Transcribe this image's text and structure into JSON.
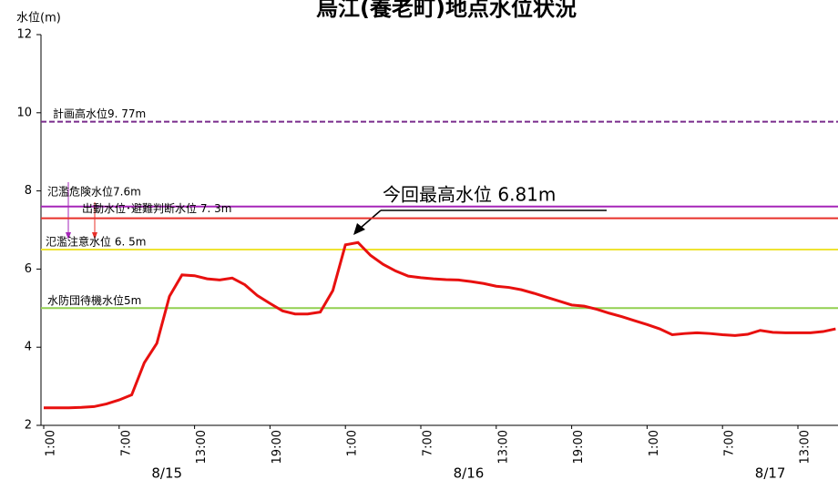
{
  "chart_data": {
    "type": "line",
    "title": "烏江(養老町)地点水位状況",
    "y_label": "水位(m)",
    "categories": [
      "1:00",
      null,
      null,
      null,
      null,
      null,
      "7:00",
      null,
      null,
      null,
      null,
      null,
      "13:00",
      null,
      null,
      null,
      null,
      null,
      "19:00",
      null,
      null,
      null,
      null,
      null,
      "1:00",
      null,
      null,
      null,
      null,
      null,
      "7:00",
      null,
      null,
      null,
      null,
      null,
      "13:00",
      null,
      null,
      null,
      null,
      null,
      "19:00",
      null,
      null,
      null,
      null,
      null,
      "1:00",
      null,
      null,
      null,
      null,
      null,
      "7:00",
      null,
      null,
      null,
      null,
      null,
      "13:00",
      null,
      null,
      null
    ],
    "dates": [
      "8/15",
      "8/16",
      "8/17"
    ],
    "series": [
      {
        "name": "水位",
        "color": "#e8100f",
        "values": [
          2.45,
          2.45,
          2.45,
          2.46,
          2.48,
          2.55,
          2.65,
          2.78,
          3.6,
          4.1,
          5.3,
          5.85,
          5.83,
          5.75,
          5.72,
          5.77,
          5.6,
          5.32,
          5.12,
          4.93,
          4.85,
          4.85,
          4.9,
          5.45,
          6.62,
          6.68,
          6.35,
          6.12,
          5.95,
          5.82,
          5.78,
          5.75,
          5.73,
          5.72,
          5.68,
          5.63,
          5.56,
          5.53,
          5.47,
          5.38,
          5.28,
          5.18,
          5.08,
          5.05,
          4.97,
          4.87,
          4.78,
          4.68,
          4.58,
          4.47,
          4.32,
          4.35,
          4.37,
          4.35,
          4.32,
          4.3,
          4.33,
          4.43,
          4.38,
          4.37,
          4.37,
          4.37,
          4.4,
          4.47
        ]
      }
    ],
    "reference_lines": [
      {
        "value": 9.77,
        "label": "計画高水位9. 77m",
        "color": "#7a2c8c",
        "dashed": true
      },
      {
        "value": 7.6,
        "label": "氾濫危険水位7.6m",
        "color": "#a626b8",
        "dashed": false
      },
      {
        "value": 7.3,
        "label": "出動水位･避難判断水位 7. 3m",
        "color": "#e8302a",
        "dashed": false
      },
      {
        "value": 6.5,
        "label": "氾濫注意水位 6. 5m",
        "color": "#eee433",
        "dashed": false
      },
      {
        "value": 5,
        "label": "水防団待機水位5m",
        "color": "#92d050",
        "dashed": false
      }
    ],
    "annotation": "今回最高水位  6.81m",
    "ylim": [
      2,
      12
    ],
    "yticks": [
      2,
      4,
      6,
      8,
      10,
      12
    ]
  }
}
